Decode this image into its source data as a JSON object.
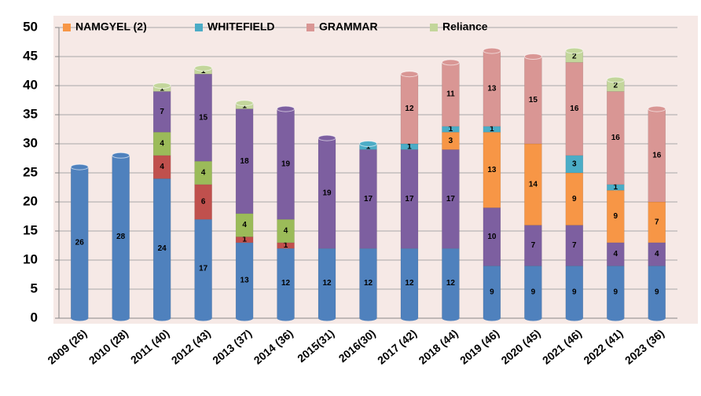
{
  "chart_data": {
    "type": "stacked_bar",
    "categories": [
      "2009 (26)",
      "2010 (28)",
      "2011 (40)",
      "2012 (43)",
      "2013 (37)",
      "2014 (36)",
      "2015(31)",
      "2016(30)",
      "2017 (42)",
      "2018 (44)",
      "2019 (46)",
      "2020 (45)",
      "2021 (46)",
      "2022 (41)",
      "2023 (36)"
    ],
    "series": [
      {
        "color": "#4f81bd",
        "values": [
          26,
          28,
          24,
          17,
          13,
          12,
          12,
          12,
          12,
          12,
          9,
          9,
          9,
          9,
          9
        ]
      },
      {
        "color": "#c0504d",
        "values": [
          null,
          null,
          4,
          6,
          1,
          1,
          null,
          null,
          null,
          null,
          null,
          null,
          null,
          null,
          null
        ]
      },
      {
        "color": "#9bbb59",
        "values": [
          null,
          null,
          4,
          4,
          4,
          4,
          null,
          null,
          null,
          null,
          null,
          null,
          null,
          null,
          null
        ]
      },
      {
        "color": "#7d5fa0",
        "values": [
          null,
          null,
          7,
          15,
          18,
          19,
          19,
          17,
          17,
          17,
          10,
          7,
          7,
          4,
          4
        ]
      },
      {
        "name": "NAMGYEL (2)",
        "color": "#f79646",
        "values": [
          null,
          null,
          null,
          null,
          null,
          null,
          null,
          null,
          null,
          3,
          13,
          14,
          9,
          9,
          7
        ]
      },
      {
        "name": "WHITEFIELD",
        "color": "#4bacc6",
        "values": [
          null,
          null,
          null,
          null,
          null,
          null,
          null,
          1,
          1,
          1,
          1,
          null,
          3,
          1,
          null
        ]
      },
      {
        "name": "GRAMMAR",
        "color": "#d99694",
        "values": [
          null,
          null,
          null,
          null,
          null,
          null,
          null,
          null,
          12,
          11,
          13,
          15,
          16,
          16,
          16
        ]
      },
      {
        "name": "Reliance",
        "color": "#c3d69b",
        "values": [
          null,
          null,
          1,
          1,
          1,
          null,
          null,
          null,
          null,
          null,
          null,
          null,
          2,
          2,
          null
        ]
      }
    ],
    "ylim": [
      0,
      50
    ],
    "yticks": [
      0,
      5,
      10,
      15,
      20,
      25,
      30,
      35,
      40,
      45,
      50
    ],
    "grid": true,
    "legend": "top"
  }
}
